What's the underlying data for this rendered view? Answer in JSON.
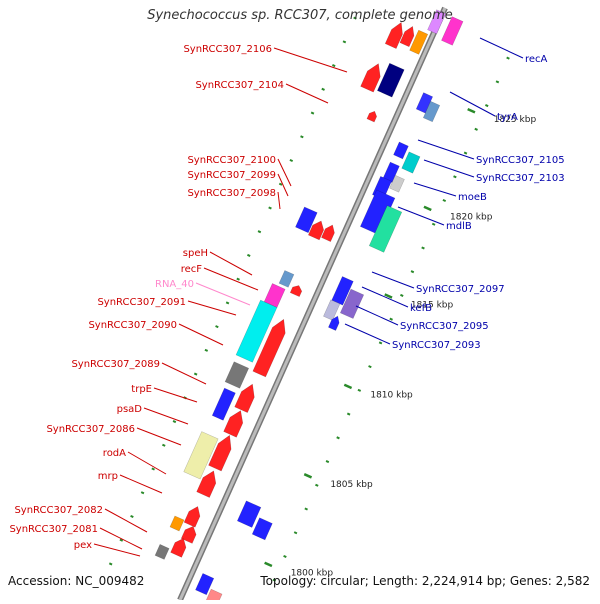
{
  "title": "Synechococcus sp. RCC307, complete genome",
  "accession": "Accession: NC_009482",
  "summary": "Topology: circular; Length: 2,224,914 bp; Genes: 2,582",
  "colors": {
    "backbone": "#999999",
    "left_label": "#cc0000",
    "right_label": "#0000aa",
    "rna_label": "#ff88cc",
    "tick": "#2a8a2a"
  },
  "kbp_marks": [
    {
      "kbp": 1825,
      "label": "1825 kbp"
    },
    {
      "kbp": 1820,
      "label": "1820 kbp"
    },
    {
      "kbp": 1815,
      "label": "1815 kbp"
    },
    {
      "kbp": 1810,
      "label": "1810 kbp"
    },
    {
      "kbp": 1805,
      "label": "1805 kbp"
    },
    {
      "kbp": 1800,
      "label": "1800 kbp"
    }
  ],
  "left_labels": [
    {
      "text": "SynRCC307_2106",
      "kind": "cds"
    },
    {
      "text": "SynRCC307_2104",
      "kind": "cds"
    },
    {
      "text": "SynRCC307_2100",
      "kind": "cds"
    },
    {
      "text": "SynRCC307_2099",
      "kind": "cds"
    },
    {
      "text": "SynRCC307_2098",
      "kind": "cds"
    },
    {
      "text": "speH",
      "kind": "cds"
    },
    {
      "text": "recF",
      "kind": "cds"
    },
    {
      "text": "RNA_40",
      "kind": "rna"
    },
    {
      "text": "SynRCC307_2091",
      "kind": "cds"
    },
    {
      "text": "SynRCC307_2090",
      "kind": "cds"
    },
    {
      "text": "SynRCC307_2089",
      "kind": "cds"
    },
    {
      "text": "trpE",
      "kind": "cds"
    },
    {
      "text": "psaD",
      "kind": "cds"
    },
    {
      "text": "SynRCC307_2086",
      "kind": "cds"
    },
    {
      "text": "rodA",
      "kind": "cds"
    },
    {
      "text": "mrp",
      "kind": "cds"
    },
    {
      "text": "SynRCC307_2082",
      "kind": "cds"
    },
    {
      "text": "SynRCC307_2081",
      "kind": "cds"
    },
    {
      "text": "pex",
      "kind": "cds"
    }
  ],
  "right_labels": [
    {
      "text": "recA"
    },
    {
      "text": "tyrA"
    },
    {
      "text": "SynRCC307_2105"
    },
    {
      "text": "SynRCC307_2103"
    },
    {
      "text": "moeB"
    },
    {
      "text": "mdlB"
    },
    {
      "text": "SynRCC307_2097"
    },
    {
      "text": "kefB"
    },
    {
      "text": "SynRCC307_2095"
    },
    {
      "text": "SynRCC307_2093"
    }
  ]
}
